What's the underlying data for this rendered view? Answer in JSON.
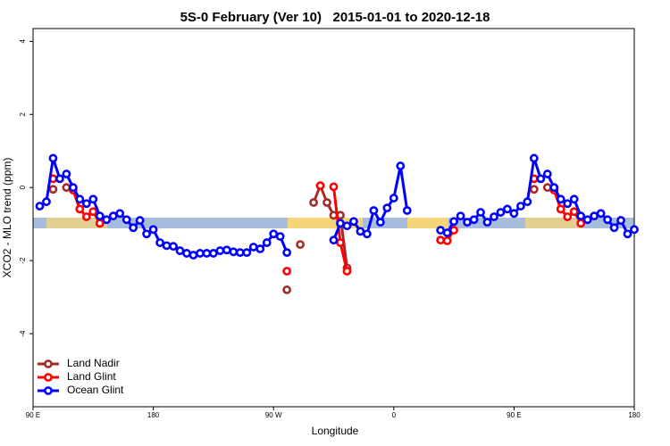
{
  "chart_data": {
    "type": "line",
    "title": "5S-0 February (Ver 10)   2015-01-01 to 2020-12-18",
    "x_label": "Longitude",
    "y_label": "XCO2 - MLO trend (ppm)",
    "legend": "bottomleft",
    "xlim": [
      90,
      540
    ],
    "ylim": [
      -6,
      4.35
    ],
    "xticks": [
      {
        "value": 90,
        "label": "90 E"
      },
      {
        "value": 180,
        "label": "180"
      },
      {
        "value": 270,
        "label": "90 W"
      },
      {
        "value": 360,
        "label": "0"
      },
      {
        "value": 450,
        "label": "90 E"
      },
      {
        "value": 540,
        "label": "180"
      }
    ],
    "yticks": [
      -4,
      -2,
      0,
      2,
      4
    ],
    "x": [
      95,
      100,
      105,
      110,
      115,
      120,
      125,
      130,
      135,
      140,
      145,
      150,
      155,
      160,
      165,
      170,
      175,
      180,
      185,
      190,
      195,
      200,
      205,
      210,
      215,
      220,
      225,
      230,
      235,
      240,
      245,
      250,
      255,
      260,
      265,
      270,
      275,
      280,
      285,
      290,
      295,
      300,
      305,
      310,
      315,
      320,
      325,
      330,
      335,
      340,
      345,
      350,
      355,
      360,
      365,
      370,
      375,
      380,
      385,
      390,
      395,
      400,
      405,
      410,
      415,
      420,
      425,
      430,
      435,
      440,
      445,
      450,
      455,
      460,
      465,
      470,
      475,
      480,
      485,
      490,
      495,
      500,
      505,
      510,
      515,
      520,
      525,
      530,
      535,
      540
    ],
    "series": [
      {
        "name": "Land Nadir",
        "color": "#a52a2a",
        "values": [
          null,
          null,
          -0.05,
          null,
          0,
          -0.05,
          -0.59,
          null,
          null,
          null,
          null,
          null,
          null,
          null,
          null,
          null,
          null,
          null,
          null,
          null,
          null,
          null,
          null,
          null,
          null,
          null,
          null,
          null,
          null,
          null,
          null,
          null,
          null,
          null,
          null,
          null,
          null,
          -2.8,
          null,
          -1.56,
          null,
          -0.41,
          0.05,
          -0.41,
          -0.76,
          -0.76,
          -2.2,
          null,
          null,
          null,
          null,
          null,
          null,
          null,
          null,
          null,
          null,
          null,
          null,
          null,
          null,
          null,
          null,
          null,
          null,
          null,
          null,
          null,
          null,
          null,
          null,
          null,
          null,
          null,
          -0.05,
          null,
          0,
          -0.05,
          -0.59,
          null,
          null,
          null,
          null,
          null,
          null,
          null,
          null,
          null,
          null,
          null
        ]
      },
      {
        "name": "Land Glint",
        "color": "#ff0000",
        "values": [
          null,
          null,
          0.24,
          null,
          null,
          -0.07,
          -0.59,
          -0.8,
          -0.66,
          -0.98,
          null,
          null,
          null,
          null,
          null,
          null,
          null,
          null,
          null,
          null,
          null,
          null,
          null,
          null,
          null,
          null,
          null,
          null,
          null,
          null,
          null,
          null,
          null,
          null,
          null,
          null,
          null,
          -2.29,
          null,
          null,
          null,
          null,
          0.05,
          null,
          0.02,
          -1.51,
          -2.29,
          null,
          null,
          null,
          null,
          null,
          null,
          null,
          null,
          null,
          null,
          null,
          null,
          null,
          -1.44,
          -1.46,
          -1.17,
          null,
          null,
          null,
          null,
          null,
          null,
          null,
          null,
          null,
          null,
          null,
          0.24,
          null,
          null,
          -0.07,
          -0.59,
          -0.8,
          -0.66,
          -0.98,
          null,
          null,
          null,
          null,
          null,
          null,
          null,
          null
        ]
      },
      {
        "name": "Ocean Glint",
        "color": "#0000ff",
        "values": [
          -0.51,
          -0.39,
          0.8,
          0.24,
          0.37,
          0,
          -0.32,
          -0.44,
          -0.32,
          -0.78,
          -0.88,
          -0.78,
          -0.71,
          -0.88,
          -1.1,
          -0.9,
          -1.27,
          -1.15,
          -1.51,
          -1.59,
          -1.61,
          -1.73,
          -1.8,
          -1.85,
          -1.8,
          -1.8,
          -1.8,
          -1.73,
          -1.71,
          -1.76,
          -1.78,
          -1.78,
          -1.63,
          -1.68,
          -1.51,
          -1.27,
          -1.34,
          -1.78,
          null,
          null,
          null,
          null,
          null,
          null,
          -1.44,
          -0.98,
          -1.05,
          -0.93,
          -1.2,
          -1.27,
          -0.63,
          -0.95,
          -0.56,
          -0.29,
          0.59,
          -0.63,
          null,
          null,
          null,
          null,
          -1.17,
          -1.24,
          -0.93,
          -0.78,
          -0.95,
          -0.88,
          -0.68,
          -0.95,
          -0.8,
          -0.68,
          -0.59,
          -0.71,
          -0.51,
          -0.39,
          0.8,
          0.24,
          0.37,
          0,
          -0.32,
          -0.44,
          -0.32,
          -0.78,
          -0.88,
          -0.78,
          -0.71,
          -0.88,
          -1.1,
          -0.9,
          -1.27,
          -1.15
        ]
      }
    ]
  }
}
